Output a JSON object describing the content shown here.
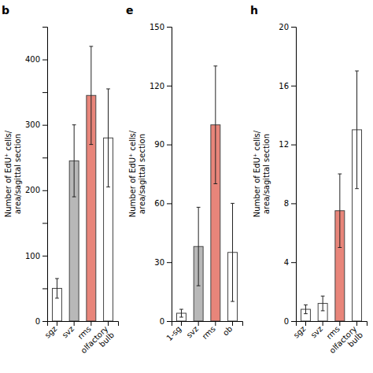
{
  "chart_data": [
    {
      "type": "bar",
      "title": "b",
      "ylabel": "Number of EdU⁺ cells/\narea/sagittal section",
      "categories": [
        "sgz",
        "svz",
        "rms",
        "olfactory\nbulb"
      ],
      "values": [
        50,
        245,
        345,
        280
      ],
      "errors": [
        15,
        55,
        75,
        75
      ],
      "colors": [
        "#ffffff",
        "#b8b8b8",
        "#e8857a",
        "#ffffff"
      ],
      "ylim": [
        0,
        450
      ],
      "yticks": [
        0,
        {
          "value": 50,
          "label": ""
        },
        100,
        {
          "value": 150,
          "label": ""
        },
        200,
        {
          "value": 250,
          "label": ""
        },
        300,
        {
          "value": 350,
          "label": ""
        },
        400,
        {
          "value": 450,
          "label": ""
        }
      ]
    },
    {
      "type": "bar",
      "title": "e",
      "ylabel": "Number of EdU⁺ cells/\narea/sagittal section",
      "categories": [
        "1-sg",
        "svz",
        "rms",
        "ob"
      ],
      "values": [
        4,
        38,
        100,
        35
      ],
      "errors": [
        2,
        20,
        30,
        25
      ],
      "colors": [
        "#ffffff",
        "#b8b8b8",
        "#e8857a",
        "#ffffff"
      ],
      "ylim": [
        0,
        150
      ],
      "yticks": [
        0,
        30,
        60,
        90,
        120,
        150
      ]
    },
    {
      "type": "bar",
      "title": "h",
      "ylabel": "Number of EdU⁺ cells/\narea/sagittal section",
      "categories": [
        "sgz",
        "svz",
        "rms",
        "olfactory\nbulb"
      ],
      "values": [
        0.8,
        1.2,
        7.5,
        13
      ],
      "errors": [
        0.3,
        0.5,
        2.5,
        4
      ],
      "colors": [
        "#ffffff",
        "#ffffff",
        "#e8857a",
        "#ffffff"
      ],
      "ylim": [
        0,
        20
      ],
      "yticks": [
        0,
        4,
        8,
        12,
        16,
        20
      ]
    }
  ]
}
